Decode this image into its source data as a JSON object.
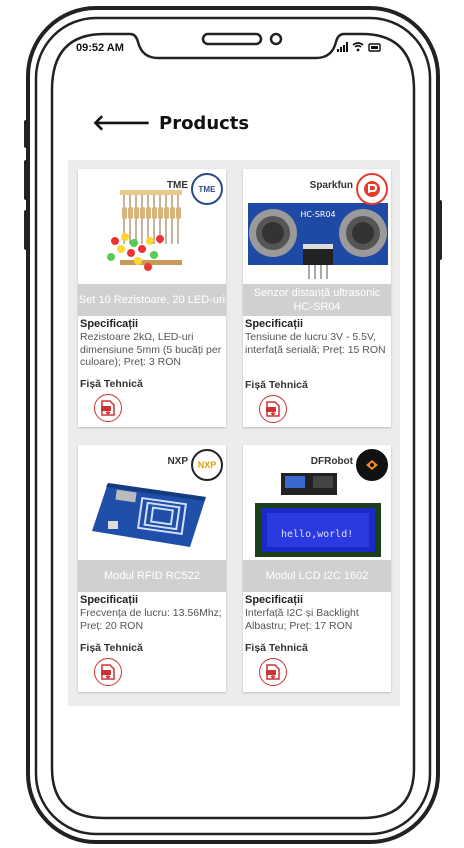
{
  "status": {
    "time": "09:52 AM",
    "icons": "..ıl ≈ ▭"
  },
  "header": {
    "title": "Products",
    "back_icon": "arrow-left-icon"
  },
  "products": [
    {
      "brand": "TME",
      "logo_text": "TME",
      "name": "Set 10 Rezistoare, 20 LED-uri",
      "spec_label": "Specificații",
      "spec": "Rezistoare 2kΩ, LED-uri dimensiune 5mm (5 bucăți per culoare); Preț: 3 RON",
      "datasheet_label": "Fișă Tehnică"
    },
    {
      "brand": "Sparkfun",
      "logo_text": "P",
      "name": "Senzor distanță ultrasonic HC-SR04",
      "spec_label": "Specificații",
      "spec": "Tensiune de lucru 3V - 5.5V, interfață serială; Preț: 15 RON",
      "datasheet_label": "Fișă Tehnică"
    },
    {
      "brand": "NXP",
      "logo_text": "NXP",
      "name": "Modul RFID RC522",
      "spec_label": "Specificații",
      "spec": "Frecvența de lucru: 13.56Mhz; Preț: 20 RON",
      "datasheet_label": "Fișă Tehnică"
    },
    {
      "brand": "DFRobot",
      "logo_text": "",
      "name": "Modul LCD I2C 1602",
      "spec_label": "Specificații",
      "spec": "Interfață I2C și Backlight Albastru; Preț: 17 RON",
      "datasheet_label": "Fișă Tehnică"
    }
  ],
  "lcd_text": "hello,world!",
  "sensor_text": "HC-SR04"
}
